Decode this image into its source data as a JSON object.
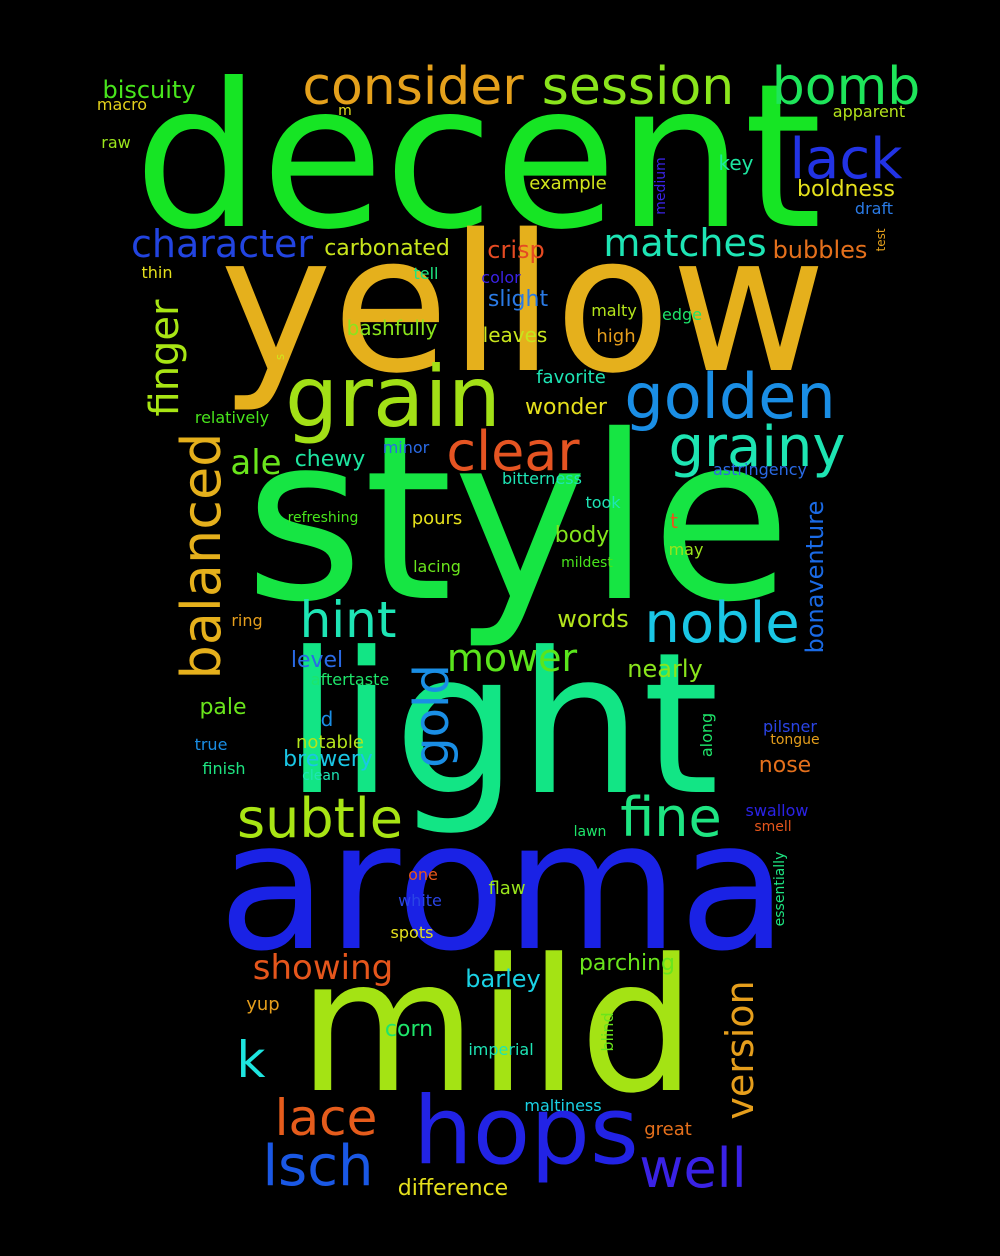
{
  "words": [
    {
      "text": "decent",
      "color": "#16e524"
    },
    {
      "text": "yellow",
      "color": "#e5b01c"
    },
    {
      "text": "style",
      "color": "#16e543"
    },
    {
      "text": "light",
      "color": "#12e585"
    },
    {
      "text": "aroma",
      "color": "#1a22e5"
    },
    {
      "text": "mild",
      "color": "#a4e314"
    },
    {
      "text": "hops",
      "color": "#2223e5"
    },
    {
      "text": "grain",
      "color": "#a2e016"
    },
    {
      "text": "golden",
      "color": "#1a8ee5"
    },
    {
      "text": "consider",
      "color": "#e5a11c"
    },
    {
      "text": "session",
      "color": "#8ae51c"
    },
    {
      "text": "bomb",
      "color": "#1ee55a"
    },
    {
      "text": "lack",
      "color": "#2233e5"
    },
    {
      "text": "character",
      "color": "#2244e0"
    },
    {
      "text": "grainy",
      "color": "#1ee5b3"
    },
    {
      "text": "clear",
      "color": "#e55422"
    },
    {
      "text": "balanced",
      "color": "#e5b01c"
    },
    {
      "text": "noble",
      "color": "#1ac6e5"
    },
    {
      "text": "hint",
      "color": "#1ee5b5"
    },
    {
      "text": "gold",
      "color": "#1a8ee5"
    },
    {
      "text": "subtle",
      "color": "#a8e514"
    },
    {
      "text": "fine",
      "color": "#1ee582"
    },
    {
      "text": "lace",
      "color": "#e55c1c"
    },
    {
      "text": "lsch",
      "color": "#1a58e5"
    },
    {
      "text": "well",
      "color": "#3a22e5"
    },
    {
      "text": "version",
      "color": "#e59e1c"
    },
    {
      "text": "mower",
      "color": "#5ae51c"
    },
    {
      "text": "matches",
      "color": "#1ee5b5"
    },
    {
      "text": "finger",
      "color": "#a8e514"
    },
    {
      "text": "showing",
      "color": "#e5561c"
    },
    {
      "text": "k",
      "color": "#1ee5e0"
    },
    {
      "text": "ale",
      "color": "#6ae51c"
    },
    {
      "text": "bonaventure",
      "color": "#1a6ae5"
    },
    {
      "text": "biscuity",
      "color": "#48e51c"
    },
    {
      "text": "carbonated",
      "color": "#c8e51c"
    },
    {
      "text": "crisp",
      "color": "#e54a22"
    },
    {
      "text": "bubbles",
      "color": "#e5701c"
    },
    {
      "text": "boldness",
      "color": "#e5e01c"
    },
    {
      "text": "slight",
      "color": "#2a7ae5"
    },
    {
      "text": "bashfully",
      "color": "#8ae51c"
    },
    {
      "text": "leaves",
      "color": "#c8e51c"
    },
    {
      "text": "wonder",
      "color": "#e5e01c"
    },
    {
      "text": "chewy",
      "color": "#1ee5a0"
    },
    {
      "text": "favorite",
      "color": "#1ee5b5"
    },
    {
      "text": "barley",
      "color": "#1ad2e5"
    },
    {
      "text": "parching",
      "color": "#6ae51c"
    },
    {
      "text": "nearly",
      "color": "#8ae51c"
    },
    {
      "text": "body",
      "color": "#82e51c"
    },
    {
      "text": "words",
      "color": "#b4e51c"
    },
    {
      "text": "level",
      "color": "#2a6ae5"
    },
    {
      "text": "pale",
      "color": "#6ae51c"
    },
    {
      "text": "brewery",
      "color": "#1ac6e5"
    },
    {
      "text": "nose",
      "color": "#e5701c"
    },
    {
      "text": "difference",
      "color": "#e5e01c"
    },
    {
      "text": "corn",
      "color": "#1ee56a"
    },
    {
      "text": "example",
      "color": "#d2e51c"
    },
    {
      "text": "key",
      "color": "#1ee5a0"
    },
    {
      "text": "draft",
      "color": "#2a7ae5"
    },
    {
      "text": "macro",
      "color": "#e5d21c"
    },
    {
      "text": "raw",
      "color": "#9ae51c"
    },
    {
      "text": "m",
      "color": "#e5e01c"
    },
    {
      "text": "apparent",
      "color": "#b4e51c"
    },
    {
      "text": "medium",
      "color": "#3a22e5"
    },
    {
      "text": "test",
      "color": "#e5a11c"
    },
    {
      "text": "thin",
      "color": "#e5e01c"
    },
    {
      "text": "tell",
      "color": "#1ee582"
    },
    {
      "text": "color",
      "color": "#3a22e5"
    },
    {
      "text": "malty",
      "color": "#b4e51c"
    },
    {
      "text": "edge",
      "color": "#1ee56a"
    },
    {
      "text": "high",
      "color": "#e59e1c"
    },
    {
      "text": "s",
      "color": "#d2e51c"
    },
    {
      "text": "relatively",
      "color": "#48e51c"
    },
    {
      "text": "minor",
      "color": "#2a6ae5"
    },
    {
      "text": "astringency",
      "color": "#2a6ae5"
    },
    {
      "text": "bitterness",
      "color": "#1ee5b5"
    },
    {
      "text": "took",
      "color": "#1ee5b5"
    },
    {
      "text": "refreshing",
      "color": "#48e51c"
    },
    {
      "text": "pours",
      "color": "#e5e01c"
    },
    {
      "text": "t",
      "color": "#e5561c"
    },
    {
      "text": "may",
      "color": "#9ae51c"
    },
    {
      "text": "lacing",
      "color": "#6ae51c"
    },
    {
      "text": "mildest",
      "color": "#48e51c"
    },
    {
      "text": "ring",
      "color": "#e59e1c"
    },
    {
      "text": "aftertaste",
      "color": "#1ee56a"
    },
    {
      "text": "d",
      "color": "#1a8ee5"
    },
    {
      "text": "notable",
      "color": "#b4e51c"
    },
    {
      "text": "along",
      "color": "#1ee56a"
    },
    {
      "text": "pilsner",
      "color": "#2a44e5"
    },
    {
      "text": "tongue",
      "color": "#e59e1c"
    },
    {
      "text": "true",
      "color": "#1a8ee5"
    },
    {
      "text": "finish",
      "color": "#1ee582"
    },
    {
      "text": "clean",
      "color": "#1ee5b5"
    },
    {
      "text": "swallow",
      "color": "#2a22e5"
    },
    {
      "text": "smell",
      "color": "#e5561c"
    },
    {
      "text": "lawn",
      "color": "#1ee56a"
    },
    {
      "text": "essentially",
      "color": "#1ee582"
    },
    {
      "text": "one",
      "color": "#e5561c"
    },
    {
      "text": "flaw",
      "color": "#9ae51c"
    },
    {
      "text": "white",
      "color": "#2a44e5"
    },
    {
      "text": "spots",
      "color": "#e5e01c"
    },
    {
      "text": "yup",
      "color": "#e59e1c"
    },
    {
      "text": "blind",
      "color": "#6ae51c"
    },
    {
      "text": "imperial",
      "color": "#1ee5b5"
    },
    {
      "text": "maltiness",
      "color": "#1ad2e5"
    },
    {
      "text": "great",
      "color": "#e5701c"
    }
  ]
}
